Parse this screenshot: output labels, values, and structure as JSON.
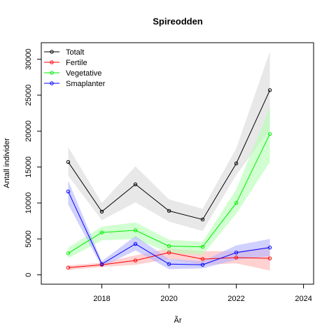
{
  "chart_data": {
    "type": "line",
    "title": "Spireodden",
    "xlabel": "Ãr",
    "ylabel": "Antall individer",
    "xlim": [
      2016.2,
      2024.3
    ],
    "ylim": [
      -1300,
      32300
    ],
    "xticks": [
      2018,
      2020,
      2022,
      2024
    ],
    "xtick_labels": [
      "2018",
      "2020",
      "2022",
      "2024"
    ],
    "yticks": [
      0,
      5000,
      10000,
      15000,
      20000,
      25000,
      30000
    ],
    "ytick_labels": [
      "0",
      "5000",
      "10000",
      "15000",
      "20000",
      "25000",
      "30000"
    ],
    "grid": false,
    "legend_position": "top-left",
    "x": [
      2017,
      2018,
      2019,
      2020,
      2021,
      2022,
      2023
    ],
    "series": [
      {
        "name": "Totalt",
        "color": "#000000",
        "band_color": "#d9d9d9",
        "values": [
          15700,
          8800,
          12600,
          8900,
          7700,
          15500,
          25700
        ],
        "lower": [
          13800,
          7600,
          10100,
          7400,
          6100,
          13900,
          20200
        ],
        "upper": [
          17800,
          10000,
          15100,
          10500,
          9200,
          17600,
          31100
        ]
      },
      {
        "name": "Fertile",
        "color": "#ff0000",
        "band_color": "#ffb3b3",
        "values": [
          1000,
          1400,
          2000,
          3100,
          2200,
          2400,
          2300
        ],
        "lower": [
          700,
          1100,
          1400,
          2200,
          1400,
          1600,
          600
        ],
        "upper": [
          1300,
          1700,
          2700,
          3700,
          3300,
          3300,
          3900
        ]
      },
      {
        "name": "Vegetative",
        "color": "#00ee00",
        "band_color": "#b3ffb3",
        "values": [
          3000,
          5900,
          6200,
          4000,
          3900,
          10000,
          19600
        ],
        "lower": [
          2300,
          4800,
          5000,
          3100,
          2800,
          8500,
          15700
        ],
        "upper": [
          3800,
          6700,
          7300,
          4900,
          4600,
          11900,
          23300
        ]
      },
      {
        "name": "Smaplanter",
        "color": "#0000ff",
        "band_color": "#b3b3ff",
        "values": [
          11600,
          1500,
          4300,
          1500,
          1400,
          3100,
          3800
        ],
        "lower": [
          9800,
          1100,
          3400,
          800,
          900,
          2100,
          2600
        ],
        "upper": [
          13100,
          1900,
          5400,
          2200,
          1900,
          4100,
          5000
        ]
      }
    ]
  }
}
